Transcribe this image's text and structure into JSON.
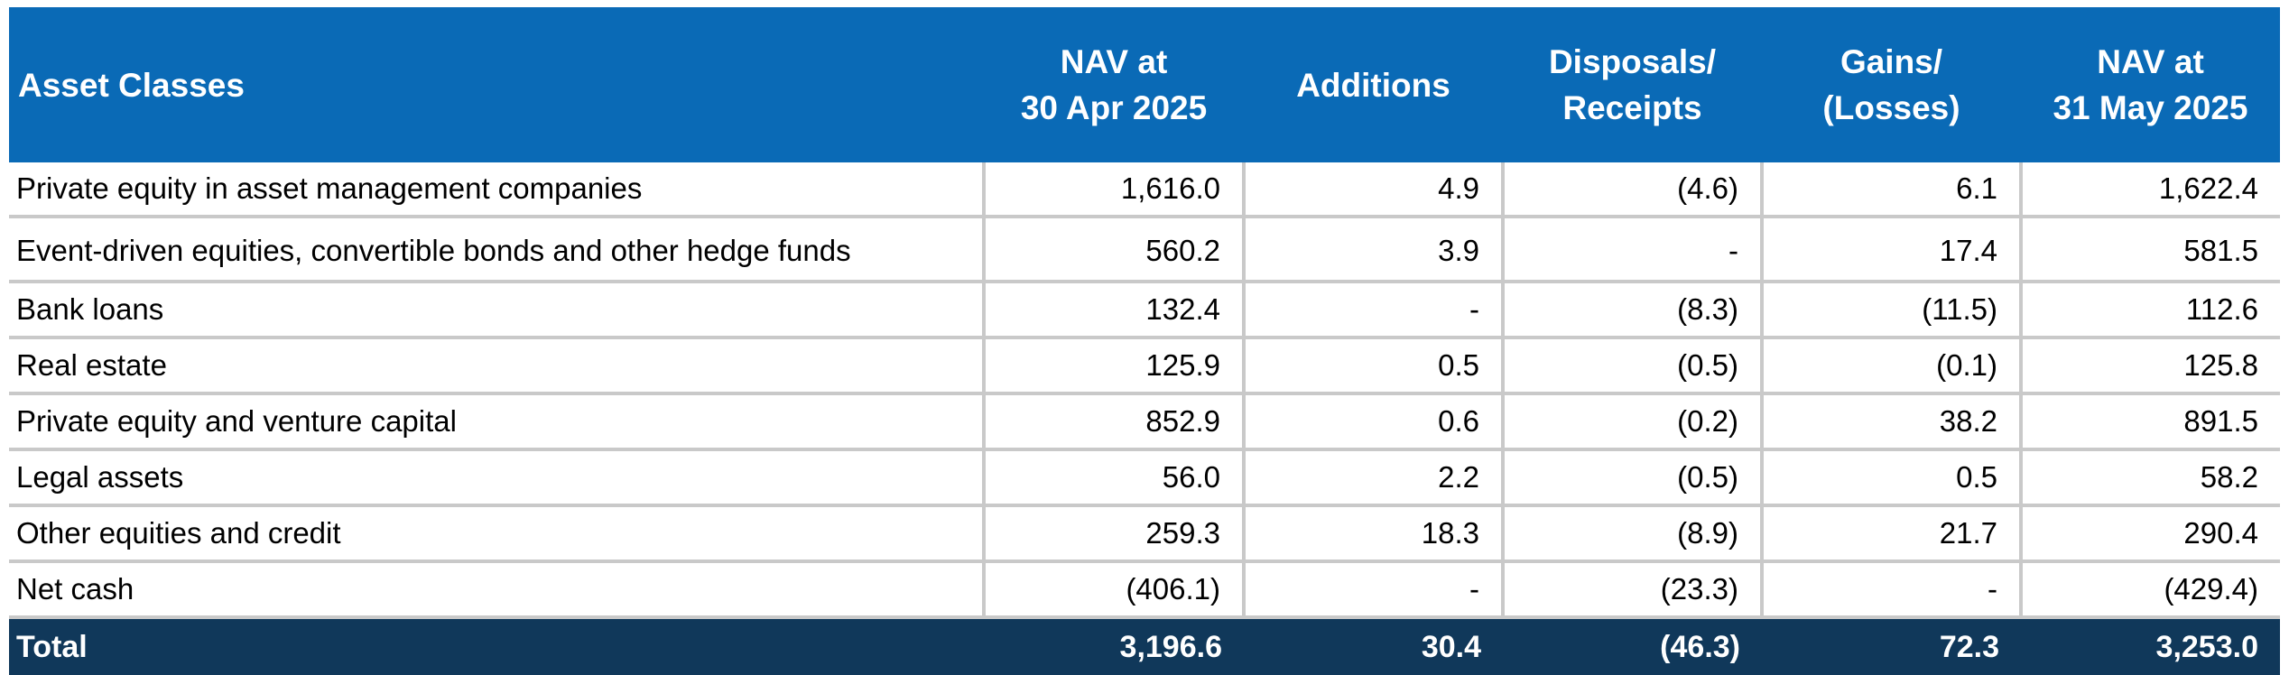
{
  "table": {
    "header": {
      "asset_classes": "Asset Classes",
      "nav_start": [
        "NAV at",
        "30 Apr 2025"
      ],
      "additions": "Additions",
      "disposals": [
        "Disposals/",
        "Receipts"
      ],
      "gains": [
        "Gains/",
        "(Losses)"
      ],
      "nav_end": [
        "NAV at",
        "31 May 2025"
      ]
    },
    "rows": [
      {
        "asset_class": "Private equity in asset management companies",
        "nav_start": "1,616.0",
        "additions": "4.9",
        "disposals": "(4.6)",
        "gains": "6.1",
        "nav_end": "1,622.4"
      },
      {
        "asset_class": "Event-driven equities, convertible bonds and other hedge funds",
        "nav_start": "560.2",
        "additions": "3.9",
        "disposals": "-",
        "gains": "17.4",
        "nav_end": "581.5"
      },
      {
        "asset_class": "Bank loans",
        "nav_start": "132.4",
        "additions": "-",
        "disposals": "(8.3)",
        "gains": "(11.5)",
        "nav_end": "112.6"
      },
      {
        "asset_class": "Real estate",
        "nav_start": "125.9",
        "additions": "0.5",
        "disposals": "(0.5)",
        "gains": "(0.1)",
        "nav_end": "125.8"
      },
      {
        "asset_class": "Private equity and venture capital",
        "nav_start": "852.9",
        "additions": "0.6",
        "disposals": "(0.2)",
        "gains": "38.2",
        "nav_end": "891.5"
      },
      {
        "asset_class": "Legal assets",
        "nav_start": "56.0",
        "additions": "2.2",
        "disposals": "(0.5)",
        "gains": "0.5",
        "nav_end": "58.2"
      },
      {
        "asset_class": "Other equities and credit",
        "nav_start": "259.3",
        "additions": "18.3",
        "disposals": "(8.9)",
        "gains": "21.7",
        "nav_end": "290.4"
      },
      {
        "asset_class": "Net cash",
        "nav_start": "(406.1)",
        "additions": "-",
        "disposals": "(23.3)",
        "gains": "-",
        "nav_end": "(429.4)"
      }
    ],
    "total": {
      "label": "Total",
      "nav_start": "3,196.6",
      "additions": "30.4",
      "disposals": "(46.3)",
      "gains": "72.3",
      "nav_end": "3,253.0"
    }
  },
  "colors": {
    "header_bg": "#0a6ab6",
    "total_bg": "#10385a",
    "grid": "#c9c9c9"
  }
}
